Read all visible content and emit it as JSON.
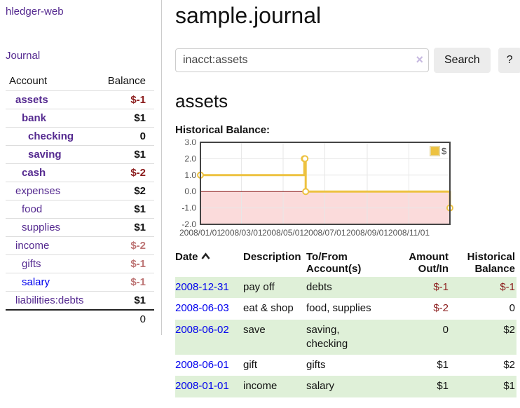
{
  "colors": {
    "link_purple": "#552a90",
    "link_blue": "#0000ee",
    "negative_strong_red": "#8b1c1c",
    "negative_soft_red": "#bd7474",
    "row_highlight_green": "#dff0d8",
    "button_gray": "#ececec",
    "chart_line_gold": "#edc240",
    "chart_negative_region_pink": "#fbdbdb",
    "chart_zero_line_red": "#8b1c1c",
    "chart_border_gray": "#444444"
  },
  "sidebar": {
    "app_title": "hledger-web",
    "journal_link": "Journal",
    "accounts_table": {
      "account_header": "Account",
      "balance_header": "Balance",
      "rows": [
        {
          "name": "assets",
          "level": 1,
          "bold": true,
          "balance": "$-1",
          "balance_class": "neg",
          "link_class": "visited"
        },
        {
          "name": "bank",
          "level": 2,
          "bold": true,
          "balance": "$1",
          "balance_class": "",
          "link_class": "visited"
        },
        {
          "name": "checking",
          "level": 3,
          "bold": true,
          "balance": "0",
          "balance_class": "",
          "link_class": "visited"
        },
        {
          "name": "saving",
          "level": 3,
          "bold": true,
          "balance": "$1",
          "balance_class": "",
          "link_class": "visited"
        },
        {
          "name": "cash",
          "level": 2,
          "bold": true,
          "balance": "$-2",
          "balance_class": "neg",
          "link_class": "visited"
        },
        {
          "name": "expenses",
          "level": 1,
          "bold": false,
          "balance": "$2",
          "balance_class": "",
          "link_class": "visited"
        },
        {
          "name": "food",
          "level": 2,
          "bold": false,
          "balance": "$1",
          "balance_class": "",
          "link_class": "visited"
        },
        {
          "name": "supplies",
          "level": 2,
          "bold": false,
          "balance": "$1",
          "balance_class": "",
          "link_class": "visited"
        },
        {
          "name": "income",
          "level": 1,
          "bold": false,
          "balance": "$-2",
          "balance_class": "neg-soft",
          "link_class": "visited"
        },
        {
          "name": "gifts",
          "level": 2,
          "bold": false,
          "balance": "$-1",
          "balance_class": "neg-soft",
          "link_class": "visited"
        },
        {
          "name": "salary",
          "level": 2,
          "bold": false,
          "balance": "$-1",
          "balance_class": "neg-soft",
          "link_class": "unvisited"
        },
        {
          "name": "liabilities:debts",
          "level": 1,
          "bold": false,
          "balance": "$1",
          "balance_class": "",
          "link_class": "visited"
        }
      ],
      "total": "0"
    }
  },
  "main": {
    "title": "sample.journal",
    "search": {
      "value": "inacct:assets",
      "clear_icon": "×",
      "button_label": "Search",
      "help_label": "?"
    },
    "account_heading": "assets",
    "chart_label": "Historical Balance:"
  },
  "chart_data": {
    "type": "line",
    "step": true,
    "title": "Historical Balance:",
    "x_range": [
      "2008-01-01",
      "2008-12-31"
    ],
    "ylim": [
      -2.0,
      3.0
    ],
    "yticks": [
      3.0,
      2.0,
      1.0,
      0.0,
      -1.0,
      -2.0
    ],
    "xtick_labels": [
      "2008/01/01",
      "2008/03/01",
      "2008/05/01",
      "2008/07/01",
      "2008/09/01",
      "2008/11/01"
    ],
    "grid": true,
    "legend": {
      "label": "$",
      "position": "top-right"
    },
    "series": [
      {
        "name": "$",
        "color": "#edc240",
        "points": [
          [
            "2008-01-01",
            1
          ],
          [
            "2008-06-01",
            2
          ],
          [
            "2008-06-02",
            2
          ],
          [
            "2008-06-03",
            0
          ],
          [
            "2008-12-31",
            -1
          ]
        ]
      }
    ]
  },
  "register_table": {
    "headers": {
      "date": "Date",
      "description": "Description",
      "accounts": "To/From Account(s)",
      "amount": "Amount Out/In",
      "balance": "Historical Balance"
    },
    "sort": {
      "column": "date",
      "direction": "ascending"
    },
    "rows": [
      {
        "date": "2008-12-31",
        "description": "pay off",
        "accounts": "debts",
        "amount": "$-1",
        "balance": "$-1"
      },
      {
        "date": "2008-06-03",
        "description": "eat & shop",
        "accounts": "food, supplies",
        "amount": "$-2",
        "balance": "0"
      },
      {
        "date": "2008-06-02",
        "description": "save",
        "accounts": "saving, checking",
        "amount": "0",
        "balance": "$2"
      },
      {
        "date": "2008-06-01",
        "description": "gift",
        "accounts": "gifts",
        "amount": "$1",
        "balance": "$2"
      },
      {
        "date": "2008-01-01",
        "description": "income",
        "accounts": "salary",
        "amount": "$1",
        "balance": "$1"
      }
    ]
  }
}
